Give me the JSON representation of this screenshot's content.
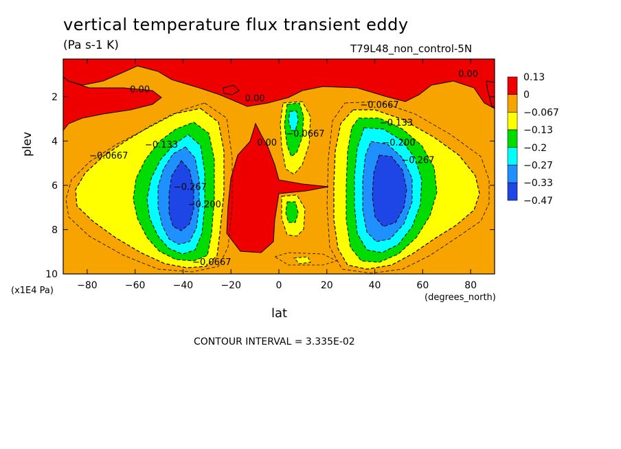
{
  "chart_data": {
    "type": "heatmap",
    "title": "vertical temperature flux transient eddy",
    "units": "(Pa s-1 K)",
    "run_label": "T79L48_non_control-5N",
    "xlabel": "lat",
    "x_unit": "(degrees_north)",
    "ylabel": "plev",
    "y_unit": "(x1E4 Pa)",
    "contour_interval_text": "CONTOUR INTERVAL = 3.335E-02",
    "xlim": [
      -90,
      90
    ],
    "ylim": [
      10,
      0.3
    ],
    "x_ticks": [
      -80,
      -60,
      -40,
      -20,
      0,
      20,
      40,
      60,
      80
    ],
    "y_ticks": [
      2,
      4,
      6,
      8,
      10
    ],
    "legend": {
      "labels": [
        "0.13",
        "0",
        "−0.067",
        "−0.13",
        "−0.2",
        "−0.27",
        "−0.33",
        "−0.47"
      ],
      "colors": [
        "#ee0000",
        "#f7a400",
        "#ffff00",
        "#00dc00",
        "#00ffff",
        "#1e90ff",
        "#1e46e6"
      ]
    },
    "contour_labels": [
      {
        "text": "0.00",
        "x": -58,
        "y": 1.8
      },
      {
        "text": "0.00",
        "x": -10,
        "y": 2.2
      },
      {
        "text": "0.00",
        "x": 79,
        "y": 1.1
      },
      {
        "text": "0.00",
        "x": -5,
        "y": 4.2
      },
      {
        "text": "−0.0667",
        "x": -71,
        "y": 4.8
      },
      {
        "text": "−0.133",
        "x": -49,
        "y": 4.3
      },
      {
        "text": "−0.267",
        "x": -37,
        "y": 6.2
      },
      {
        "text": "−0.200",
        "x": -31,
        "y": 7.0
      },
      {
        "text": "−0.0667",
        "x": -28,
        "y": 9.6
      },
      {
        "text": "−0.0667",
        "x": 11,
        "y": 3.8
      },
      {
        "text": "−0.0667",
        "x": 42,
        "y": 2.5
      },
      {
        "text": "−0.133",
        "x": 49,
        "y": 3.3
      },
      {
        "text": "−0.200",
        "x": 50,
        "y": 4.2
      },
      {
        "text": "−0.267",
        "x": 58,
        "y": 5.0
      }
    ]
  }
}
